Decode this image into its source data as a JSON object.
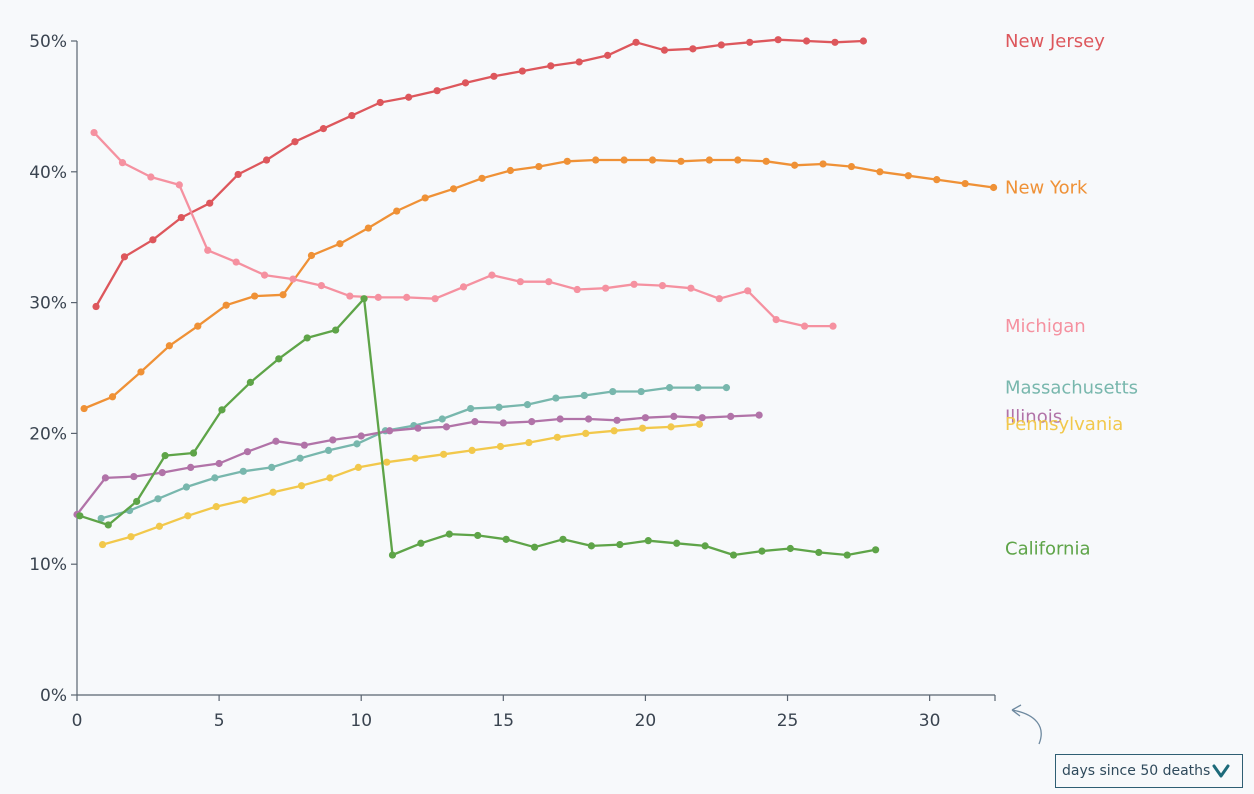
{
  "chart_data": {
    "type": "line",
    "title": "",
    "xlabel": "",
    "ylabel": "",
    "xlim": [
      0,
      32.3
    ],
    "ylim": [
      0,
      50
    ],
    "x_ticks": [
      0,
      5,
      10,
      15,
      20,
      25,
      30
    ],
    "y_ticks": [
      0,
      10,
      20,
      30,
      40,
      50
    ],
    "y_tick_labels": [
      "0%",
      "10%",
      "20%",
      "30%",
      "40%",
      "50%"
    ],
    "grid": false,
    "legend": "inline labels at right",
    "series": [
      {
        "name": "New Jersey",
        "color": "#dd575c",
        "label_y": 50,
        "x": [
          0.67,
          1.67,
          2.67,
          3.67,
          4.67,
          5.67,
          6.67,
          7.67,
          8.67,
          9.67,
          10.67,
          11.67,
          12.67,
          13.67,
          14.67,
          15.67,
          16.67,
          17.67,
          18.67,
          19.67,
          20.67,
          21.67,
          22.67,
          23.67,
          24.67,
          25.67,
          26.67,
          27.67
        ],
        "values": [
          29.7,
          33.5,
          34.8,
          36.5,
          37.6,
          39.8,
          40.9,
          42.3,
          43.3,
          44.3,
          45.3,
          45.7,
          46.2,
          46.8,
          47.3,
          47.7,
          48.1,
          48.4,
          48.9,
          49.9,
          49.3,
          49.4,
          49.7,
          49.9,
          50.1,
          50.0,
          49.9,
          50.0
        ]
      },
      {
        "name": "New York",
        "color": "#ef9136",
        "label_y": 38.8,
        "x": [
          0.25,
          1.25,
          2.25,
          3.25,
          4.25,
          5.25,
          6.25,
          7.25,
          8.25,
          9.25,
          10.25,
          11.25,
          12.25,
          13.25,
          14.25,
          15.25,
          16.25,
          17.25,
          18.25,
          19.25,
          20.25,
          21.25,
          22.25,
          23.25,
          24.25,
          25.25,
          26.25,
          27.25,
          28.25,
          29.25,
          30.25,
          31.25,
          32.25
        ],
        "values": [
          21.9,
          22.8,
          24.7,
          26.7,
          28.2,
          29.8,
          30.5,
          30.6,
          33.6,
          34.5,
          35.7,
          37.0,
          38.0,
          38.7,
          39.5,
          40.1,
          40.4,
          40.8,
          40.9,
          40.9,
          40.9,
          40.8,
          40.9,
          40.9,
          40.8,
          40.5,
          40.6,
          40.4,
          40.0,
          39.7,
          39.4,
          39.1,
          38.8
        ]
      },
      {
        "name": "Michigan",
        "color": "#f591a0",
        "label_y": 28.2,
        "x": [
          0.6,
          1.6,
          2.6,
          3.6,
          4.6,
          5.6,
          6.6,
          7.6,
          8.6,
          9.6,
          10.6,
          11.6,
          12.6,
          13.6,
          14.6,
          15.6,
          16.6,
          17.6,
          18.6,
          19.6,
          20.6,
          21.6,
          22.6,
          23.6,
          24.6,
          25.6,
          26.6
        ],
        "values": [
          43.0,
          40.7,
          39.6,
          39.0,
          34.0,
          33.1,
          32.1,
          31.8,
          31.3,
          30.5,
          30.4,
          30.4,
          30.3,
          31.2,
          32.1,
          31.6,
          31.6,
          31.0,
          31.1,
          31.4,
          31.3,
          31.1,
          30.3,
          30.9,
          28.7,
          28.2,
          28.2
        ]
      },
      {
        "name": "Massachusetts",
        "color": "#78b7ad",
        "label_y": 23.5,
        "x": [
          0.85,
          1.85,
          2.85,
          3.85,
          4.85,
          5.85,
          6.85,
          7.85,
          8.85,
          9.85,
          10.85,
          11.85,
          12.85,
          13.85,
          14.85,
          15.85,
          16.85,
          17.85,
          18.85,
          19.85,
          20.85,
          21.85,
          22.85
        ],
        "values": [
          13.5,
          14.1,
          15.0,
          15.9,
          16.6,
          17.1,
          17.4,
          18.1,
          18.7,
          19.2,
          20.2,
          20.6,
          21.1,
          21.9,
          22.0,
          22.2,
          22.7,
          22.9,
          23.2,
          23.2,
          23.5,
          23.5,
          23.5
        ]
      },
      {
        "name": "Illinois",
        "color": "#b173a8",
        "label_y": 21.3,
        "x": [
          0,
          1,
          2,
          3,
          4,
          5,
          6,
          7,
          8,
          9,
          10,
          11,
          12,
          13,
          14,
          15,
          16,
          17,
          18,
          19,
          20,
          21,
          22,
          23,
          24
        ],
        "values": [
          13.8,
          16.6,
          16.7,
          17.0,
          17.4,
          17.7,
          18.6,
          19.4,
          19.1,
          19.5,
          19.8,
          20.2,
          20.4,
          20.5,
          20.9,
          20.8,
          20.9,
          21.1,
          21.1,
          21.0,
          21.2,
          21.3,
          21.2,
          21.3,
          21.4
        ]
      },
      {
        "name": "Pennsylvania",
        "color": "#f2c84b",
        "label_y": 20.7,
        "x": [
          0.9,
          1.9,
          2.9,
          3.9,
          4.9,
          5.9,
          6.9,
          7.9,
          8.9,
          9.9,
          10.9,
          11.9,
          12.9,
          13.9,
          14.9,
          15.9,
          16.9,
          17.9,
          18.9,
          19.9,
          20.9,
          21.9
        ],
        "values": [
          11.5,
          12.1,
          12.9,
          13.7,
          14.4,
          14.9,
          15.5,
          16.0,
          16.6,
          17.4,
          17.8,
          18.1,
          18.4,
          18.7,
          19.0,
          19.3,
          19.7,
          20.0,
          20.2,
          20.4,
          20.5,
          20.7
        ]
      },
      {
        "name": "California",
        "color": "#5ea448",
        "label_y": 11.2,
        "x": [
          0.1,
          1.1,
          2.1,
          3.1,
          4.1,
          5.1,
          6.1,
          7.1,
          8.1,
          9.1,
          10.1,
          11.1,
          12.1,
          13.1,
          14.1,
          15.1,
          16.1,
          17.1,
          18.1,
          19.1,
          20.1,
          21.1,
          22.1,
          23.1,
          24.1,
          25.1,
          26.1,
          27.1,
          28.1
        ],
        "values": [
          13.7,
          13.0,
          14.8,
          18.3,
          18.5,
          21.8,
          23.9,
          25.7,
          27.3,
          27.9,
          30.3,
          10.7,
          11.6,
          12.3,
          12.2,
          11.9,
          11.3,
          11.9,
          11.4,
          11.5,
          11.8,
          11.6,
          11.4,
          10.7,
          11.0,
          11.2,
          10.9,
          10.7,
          11.1
        ]
      }
    ]
  },
  "controls": {
    "x_variable_label": "days since 50 deaths",
    "chevron_icon": "chevron-down-icon",
    "hint_icon": "curved-arrow-icon"
  }
}
